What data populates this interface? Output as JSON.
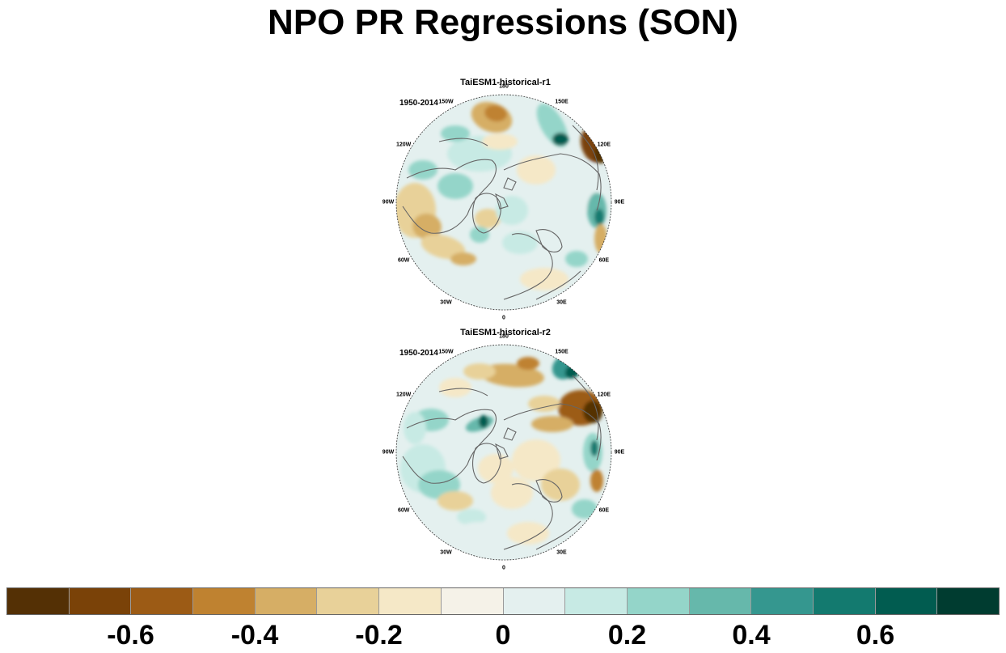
{
  "title": "NPO PR Regressions (SON)",
  "panels": [
    {
      "title": "TaiESM1-historical-r1",
      "period": "1950-2014",
      "pattern": "r1"
    },
    {
      "title": "TaiESM1-historical-r2",
      "period": "1950-2014",
      "pattern": "r2"
    }
  ],
  "longitude_labels": [
    "180",
    "150E",
    "120E",
    "90E",
    "60E",
    "30E",
    "0",
    "30W",
    "60W",
    "90W",
    "120W",
    "150W"
  ],
  "colorbar": {
    "colors": [
      "#543005",
      "#7a4208",
      "#9c5b15",
      "#bf8230",
      "#d6ae65",
      "#e8d199",
      "#f5e8c7",
      "#f5f2e8",
      "#e4f0ef",
      "#c7eae4",
      "#94d5c9",
      "#66b8ab",
      "#35978f",
      "#137a6f",
      "#015c50",
      "#003c30"
    ],
    "tick_labels": [
      "-0.6",
      "-0.4",
      "-0.2",
      "0",
      "0.2",
      "0.4",
      "0.6"
    ],
    "tick_values": [
      -0.6,
      -0.4,
      -0.2,
      0,
      0.2,
      0.4,
      0.6
    ],
    "min": -0.8,
    "max": 0.8
  }
}
